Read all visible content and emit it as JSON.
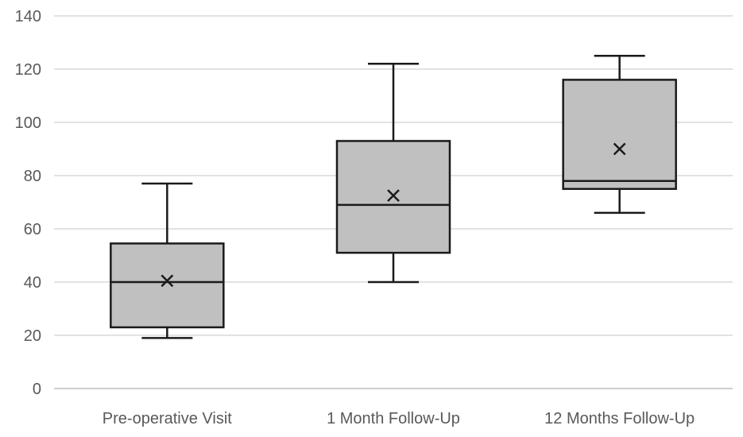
{
  "chart_data": {
    "type": "boxplot",
    "categories": [
      "Pre-operative Visit",
      "1 Month Follow-Up",
      "12 Months Follow-Up"
    ],
    "series": [
      {
        "boxes": [
          {
            "min": 19,
            "q1": 23,
            "median": 40,
            "q3": 54.5,
            "max": 77,
            "mean": 40.5
          },
          {
            "min": 40,
            "q1": 51,
            "median": 69,
            "q3": 93,
            "max": 122,
            "mean": 72.5
          },
          {
            "min": 66,
            "q1": 75,
            "median": 78,
            "q3": 116,
            "max": 125,
            "mean": 90
          }
        ]
      }
    ],
    "yticks": [
      "0",
      "20",
      "40",
      "60",
      "80",
      "100",
      "120",
      "140"
    ],
    "ylim": [
      0,
      140
    ],
    "grid": true,
    "title": "",
    "xlabel": "",
    "ylabel": "",
    "colors": {
      "box_fill": "#c0c0c0",
      "stroke": "#1a1a1a",
      "grid": "#d9d9d9",
      "axis": "#bfbfbf",
      "label": "#595959"
    }
  }
}
